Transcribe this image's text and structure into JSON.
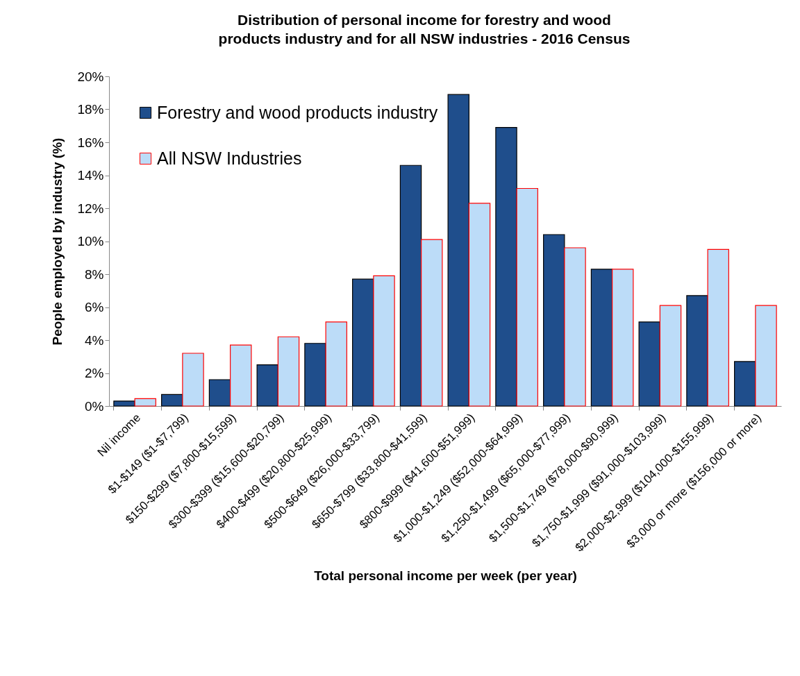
{
  "chart_data": {
    "type": "bar",
    "title": "Distribution of personal income for forestry and wood products industry and for all NSW industries  - 2016 Census",
    "xlabel": "Total personal income per week (per year)",
    "ylabel": "People employed by industry (%)",
    "categories": [
      "Nil income",
      "$1-$149 ($1-$7,799)",
      "$150-$299 ($7,800-$15,599)",
      "$300-$399 ($15,600-$20,799)",
      "$400-$499 ($20,800-$25,999)",
      "$500-$649 ($26,000-$33,799)",
      "$650-$799 ($33,800-$41,599)",
      "$800-$999 ($41,600-$51,999)",
      "$1,000-$1,249 ($52,000-$64,999)",
      "$1,250-$1,499 ($65,000-$77,999)",
      "$1,500-$1,749 ($78,000-$90,999)",
      "$1,750-$1,999 ($91,000-$103,999)",
      "$2,000-$2,999 ($104,000-$155,999)",
      "$3,000 or more ($156,000 or more)"
    ],
    "series": [
      {
        "name": "Forestry and wood products industry",
        "color": "#1f4e8c",
        "values": [
          0.3,
          0.7,
          1.6,
          2.5,
          3.8,
          7.7,
          14.6,
          18.9,
          16.9,
          10.4,
          8.3,
          5.1,
          6.7,
          2.7
        ]
      },
      {
        "name": "All NSW Industries",
        "color": "#bcdcf8",
        "values": [
          0.45,
          3.2,
          3.7,
          4.2,
          5.1,
          7.9,
          10.1,
          12.3,
          13.2,
          9.6,
          8.3,
          6.1,
          9.5,
          6.1
        ]
      }
    ],
    "ylim": [
      0,
      20
    ],
    "yticks": [
      {
        "value": 0,
        "label": "0%"
      },
      {
        "value": 2,
        "label": "2%"
      },
      {
        "value": 4,
        "label": "4%"
      },
      {
        "value": 6,
        "label": "6%"
      },
      {
        "value": 8,
        "label": "8%"
      },
      {
        "value": 10,
        "label": "10%"
      },
      {
        "value": 12,
        "label": "12%"
      },
      {
        "value": 14,
        "label": "14%"
      },
      {
        "value": 16,
        "label": "16%"
      },
      {
        "value": 18,
        "label": "18%"
      },
      {
        "value": 20,
        "label": "20%"
      }
    ],
    "grid": false,
    "legend": "top left"
  }
}
